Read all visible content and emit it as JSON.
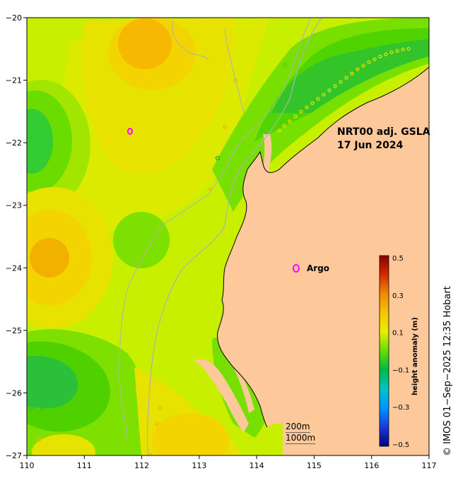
{
  "map": {
    "title_line1": "NRT00 adj. GSLA",
    "title_line2": "17 Jun 2024",
    "x_ticks": [
      "110",
      "111",
      "112",
      "113",
      "114",
      "115",
      "116",
      "117"
    ],
    "y_ticks": [
      "−20",
      "−21",
      "−22",
      "−23",
      "−24",
      "−25",
      "−26",
      "−27"
    ],
    "lon_range": [
      110,
      117
    ],
    "lat_range": [
      -27,
      -20
    ],
    "land_color": "#fdc99a",
    "legend": {
      "argo_label": "Argo",
      "argo_color": "#ff00ff"
    },
    "scale_bar": {
      "line1": "200m",
      "line2": "1000m"
    },
    "colorbar": {
      "title": "height anomaly (m)",
      "ticks": [
        "0.5",
        "0.3",
        "0.1",
        "−0.1",
        "−0.3",
        "−0.5"
      ],
      "range": [
        -0.5,
        0.5
      ]
    },
    "credit": "© IMOS 01−Sep−2025 12:35 Hobart"
  }
}
